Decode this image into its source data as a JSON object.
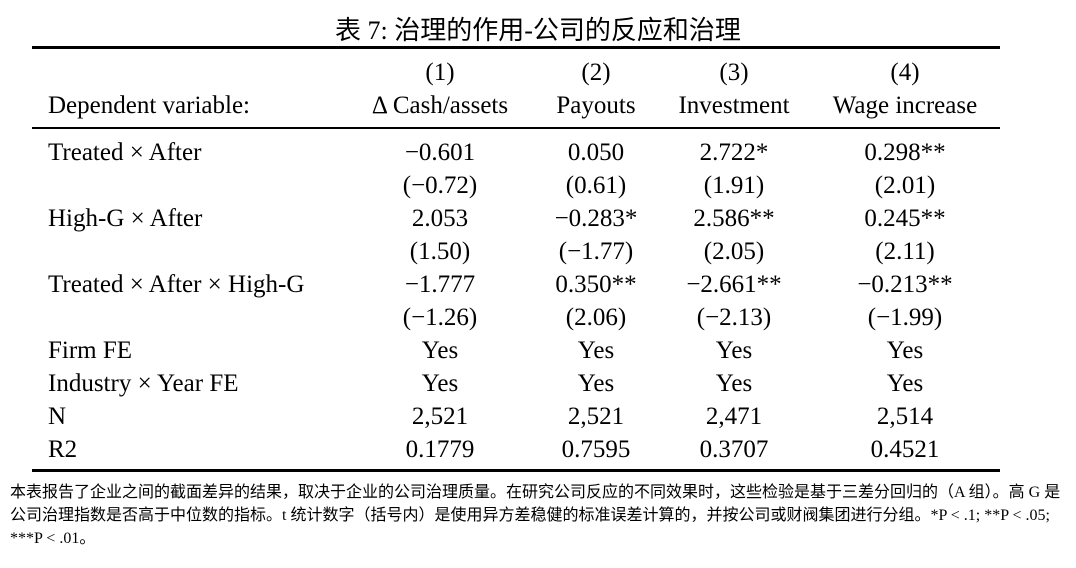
{
  "table": {
    "title": "表 7: 治理的作用-公司的反应和治理",
    "numbers": [
      "(1)",
      "(2)",
      "(3)",
      "(4)"
    ],
    "dep_label": "Dependent variable:",
    "columns": [
      "Δ Cash/assets",
      "Payouts",
      "Investment",
      "Wage increase"
    ],
    "rows": [
      {
        "label": "Treated × After",
        "values": [
          "−0.601",
          "0.050",
          "2.722*",
          "0.298**"
        ]
      },
      {
        "label": "",
        "values": [
          "(−0.72)",
          "(0.61)",
          "(1.91)",
          "(2.01)"
        ]
      },
      {
        "label": "High-G × After",
        "values": [
          "2.053",
          "−0.283*",
          "2.586**",
          "0.245**"
        ]
      },
      {
        "label": "",
        "values": [
          "(1.50)",
          "(−1.77)",
          "(2.05)",
          "(2.11)"
        ]
      },
      {
        "label": "Treated × After × High-G",
        "values": [
          "−1.777",
          "0.350**",
          "−2.661**",
          "−0.213**"
        ]
      },
      {
        "label": "",
        "values": [
          "(−1.26)",
          "(2.06)",
          "(−2.13)",
          "(−1.99)"
        ]
      },
      {
        "label": "Firm FE",
        "values": [
          "Yes",
          "Yes",
          "Yes",
          "Yes"
        ]
      },
      {
        "label": "Industry × Year FE",
        "values": [
          "Yes",
          "Yes",
          "Yes",
          "Yes"
        ]
      },
      {
        "label": "N",
        "values": [
          "2,521",
          "2,521",
          "2,471",
          "2,514"
        ]
      },
      {
        "label": "R2",
        "values": [
          "0.1779",
          "0.7595",
          "0.3707",
          "0.4521"
        ]
      }
    ],
    "note": "本表报告了企业之间的截面差异的结果，取决于企业的公司治理质量。在研究公司反应的不同效果时，这些检验是基于三差分回归的（A 组）。高 G 是公司治理指数是否高于中位数的指标。t 统计数字（括号内）是使用异方差稳健的标准误差计算的，并按公司或财阀集团进行分组。*P < .1; **P < .05; ***P < .01。"
  }
}
